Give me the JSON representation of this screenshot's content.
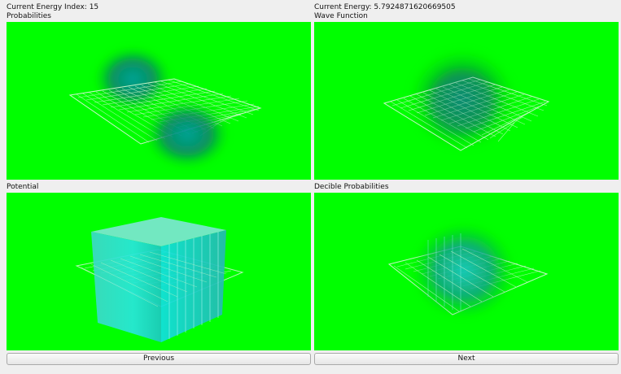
{
  "header": {
    "energy_index_label": "Current Energy Index: 15",
    "energy_label": "Current Energy: 5.7924871620669505"
  },
  "panels": [
    {
      "title": "Probabilities"
    },
    {
      "title": "Wave Function"
    },
    {
      "title": "Potential"
    },
    {
      "title": "Decible Probabilities"
    }
  ],
  "buttons": {
    "previous": "Previous",
    "next": "Next"
  },
  "colors": {
    "panel_background": "#00ff00",
    "grid": "#c8f5c8",
    "volume": "#00d5cc"
  }
}
